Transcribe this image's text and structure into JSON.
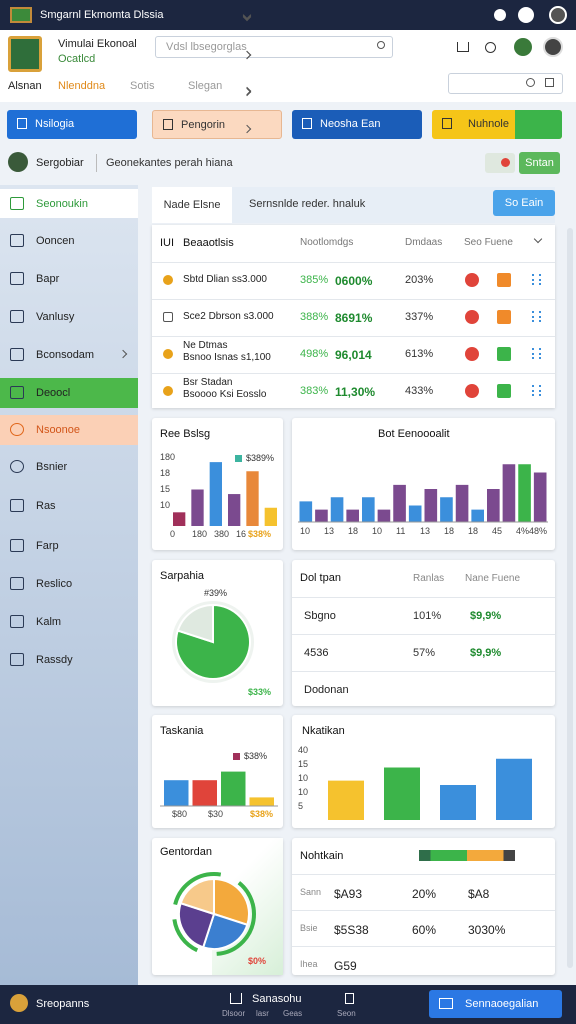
{
  "header": {
    "title": "Smgarnl Ekmomta Dlssia"
  },
  "topbar": {
    "brand": [
      "Vimulai Ekonoal",
      "Ocatlcd"
    ],
    "search": "Vdsl lbsegorglas"
  },
  "tabs": [
    "Alsnan",
    "Nlenddna",
    "Sotis",
    "Slegan"
  ],
  "actions": [
    "Nsilogia",
    "Pengorin",
    "Neosha Ean",
    "Nuhnole"
  ],
  "user": {
    "name": "Sergobiar",
    "note": "Geonekantes perah hiana",
    "button": "Sntan"
  },
  "sidebar": [
    "Seonoukin",
    "Ooncen",
    "Bapr",
    "Vanlusy",
    "Bconsodam",
    "Deoocl",
    "Nsoonoe",
    "Bsnier",
    "Ras",
    "Farp",
    "Reslico",
    "Kalm",
    "Rassdy"
  ],
  "panel": {
    "tabs": [
      "Nade Elsne",
      "Sernsnlde reder. hnaluk"
    ],
    "button": "So Eain"
  },
  "table": {
    "header": [
      "IUI",
      "Beaaotlsis",
      "Nootlomdgs",
      "Dmdaas",
      "Seo Fuene"
    ],
    "rows": [
      {
        "name": [
          "Sbtd Dlian ss3.000"
        ],
        "cells": [
          "385%",
          "0600%",
          "203%"
        ]
      },
      {
        "name": [
          "Sce2 Dbrson s3.000"
        ],
        "cells": [
          "388%",
          "8691%",
          "337%"
        ]
      },
      {
        "name": [
          "Ne Dtmas",
          "Bsnoo Isnas s1,100"
        ],
        "cells": [
          "498%",
          "96,014",
          "613%"
        ]
      },
      {
        "name": [
          "Bsr Stadan",
          "Bsoooo Ksi Eosslo"
        ],
        "cells": [
          "383%",
          "11,30%",
          "433%"
        ]
      }
    ]
  },
  "cards": {
    "c1": {
      "title": "Ree Bslsg",
      "legend": "$389%",
      "note": "$38%",
      "ylabels": [
        "180",
        "18",
        "15",
        "10"
      ],
      "xlabels": [
        "0",
        "180",
        "380",
        "16"
      ],
      "chart": {
        "type": "bar",
        "values": [
          3,
          8,
          14,
          7,
          12,
          4
        ],
        "colors": [
          "#a0305a",
          "#7b4a8f",
          "#3b8fdc",
          "#7b4a8f",
          "#e8883a",
          "#f5c22e"
        ],
        "ylim": [
          0,
          16
        ]
      }
    },
    "c2": {
      "title": "Bot Eenoooalit",
      "xlabels": [
        "10",
        "13",
        "18",
        "10",
        "11",
        "13",
        "18",
        "18",
        "45",
        "4%48%"
      ],
      "chart": {
        "type": "bar",
        "values": [
          5,
          3,
          6,
          3,
          6,
          3,
          9,
          4,
          8,
          6,
          9,
          3,
          8,
          14,
          14,
          12
        ],
        "colors": [
          "#3b8fdc",
          "#7b4a8f",
          "#3b8fdc",
          "#7b4a8f",
          "#3b8fdc",
          "#7b4a8f",
          "#7b4a8f",
          "#3b8fdc",
          "#7b4a8f",
          "#3b8fdc",
          "#7b4a8f",
          "#3b8fdc",
          "#7b4a8f",
          "#7b4a8f",
          "#3cb44a",
          "#7b4a8f"
        ],
        "ylim": [
          0,
          16
        ]
      }
    },
    "c3": {
      "title": "Sarpahia",
      "label": "#39%",
      "note": "$33%",
      "chart": {
        "type": "pie",
        "values": [
          80,
          20
        ],
        "colors": [
          "#3cb44a",
          "#dfe9e0"
        ]
      }
    },
    "c4": {
      "title": "Dol tpan",
      "header": [
        "Ranlas",
        "Nane Fuene"
      ],
      "rows": [
        [
          "Sbgno",
          "101%",
          "$9,9%"
        ],
        [
          "4536",
          "57%",
          "$9,9%"
        ],
        [
          "Dodonan"
        ]
      ]
    },
    "c5": {
      "title": "Taskania",
      "legend": "$38%",
      "note": "$38%",
      "xlabels": [
        "$80",
        "$30"
      ],
      "chart": {
        "type": "bar",
        "values": [
          6,
          6,
          8,
          2
        ],
        "colors": [
          "#3b8fdc",
          "#e0443a",
          "#3cb44a",
          "#f5c22e"
        ],
        "ylim": [
          0,
          10
        ]
      }
    },
    "c6": {
      "title": "Nkatikan",
      "ylabels": [
        "40",
        "15",
        "10",
        "10",
        "5"
      ],
      "chart": {
        "type": "bar",
        "values": [
          9,
          12,
          8,
          14
        ],
        "colors": [
          "#f5c22e",
          "#3cb44a",
          "#3b8fdc",
          "#3b8fdc"
        ],
        "ylim": [
          0,
          16
        ]
      }
    },
    "c7": {
      "title": "Gentordan",
      "note": "$0%",
      "chart": {
        "type": "pie",
        "values": [
          30,
          25,
          25,
          20
        ],
        "colors": [
          "#f3a93c",
          "#3b7fd0",
          "#5b3f8f",
          "#f7c98a"
        ]
      }
    },
    "c8": {
      "title": "Nohtkain",
      "rows": [
        [
          "Sann",
          "$A93",
          "20%",
          "$A8"
        ],
        [
          "Bsie",
          "$5S38",
          "60%",
          "3030%"
        ],
        [
          "Ihea",
          "G59"
        ]
      ]
    }
  },
  "footer": {
    "user": "Sreopanns",
    "center": "Sanasohu",
    "center_sub": [
      "Dlsoor",
      "lasr",
      "Geas"
    ],
    "icon_label": "Seon",
    "button": "Sennaoegalian"
  }
}
